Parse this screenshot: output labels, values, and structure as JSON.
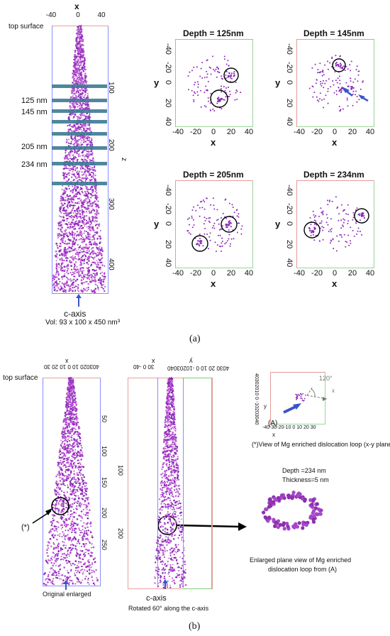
{
  "panel_a": {
    "x_label": "x",
    "x_ticks": [
      "-40",
      "0",
      "40"
    ],
    "top_surface": "top surface",
    "z_label": "z",
    "z_ticks": [
      "100",
      "200",
      "300",
      "400"
    ],
    "depth_labels": [
      "125 nm",
      "145 nm",
      "205 nm",
      "234 nm"
    ],
    "c_axis": "c-axis",
    "volume": "Vol: 93 x 100 x 450 nm³",
    "caption": "(a)",
    "slices": [
      {
        "title": "Depth = 125nm"
      },
      {
        "title": "Depth = 145nm"
      },
      {
        "title": "Depth = 205nm"
      },
      {
        "title": "Depth = 234nm"
      }
    ],
    "slice_x_ticks": [
      "-40",
      "-20",
      "0",
      "20",
      "40"
    ],
    "slice_y_ticks": [
      "-40",
      "-20",
      "0",
      "20",
      "40"
    ],
    "slice_x_label": "x",
    "slice_y_label": "y"
  },
  "panel_b": {
    "top_surface": "top surface",
    "left_x_ticks": "403020 10 0 10 20 30",
    "left_x_label": "x",
    "left_z_ticks": [
      "50",
      "100",
      "150",
      "200",
      "250"
    ],
    "mid_x_ticks": "30   0   -40",
    "mid_x_label": "x",
    "mid_y_ticks": "4030 20 10 0 -10203040",
    "mid_y_label": "y",
    "mid_z_ticks": [
      "100",
      "200"
    ],
    "star_label": "(*)",
    "c_axis_left": "c-axis",
    "c_axis_mid": "c-axis",
    "caption_left": "Original enlarged",
    "caption_mid": "Rotated 60° along the c-axis",
    "inset_y_ticks": "40302010 0 -10203040",
    "inset_y_label": "y",
    "inset_x_ticks": "-40-30-20-10 0 10 20 30",
    "inset_x_label": "x",
    "inset_angle": "120°",
    "inset_axis": "x",
    "inset_marker": "(A)",
    "inset_caption": "(*)View of Mg enriched dislocation loop (x-y  plane)",
    "depth_note": "Depth =234 nm",
    "thickness_note": "Thickness=5 nm",
    "enlarged_caption_1": "Enlarged plane view of Mg enriched",
    "enlarged_caption_2": "dislocation loop from (A)",
    "caption": "(b)"
  },
  "colors": {
    "atoms": "#8a2bb8",
    "atoms_light": "#c05ad6",
    "band": "#3d7a93",
    "arrow": "#3a55c8"
  }
}
